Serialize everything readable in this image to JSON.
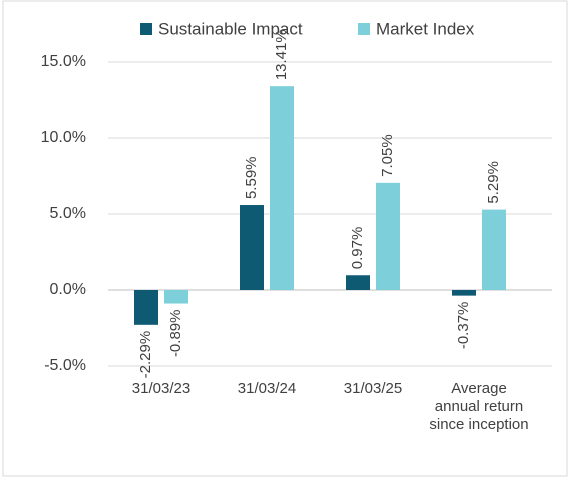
{
  "chart_data": {
    "type": "bar",
    "categories": [
      "31/03/23",
      "31/03/24",
      "31/03/25",
      "Average annual return since inception"
    ],
    "series": [
      {
        "name": "Sustainable Impact",
        "color": "#0e5a73",
        "values": [
          -2.29,
          5.59,
          0.97,
          -0.37
        ],
        "value_labels": [
          "-2.29%",
          "5.59%",
          "0.97%",
          "-0.37%"
        ]
      },
      {
        "name": "Market Index",
        "color": "#7dd0d9",
        "values": [
          -0.89,
          13.41,
          7.05,
          5.29
        ],
        "value_labels": [
          "-0.89%",
          "13.41%",
          "7.05%",
          "5.29%"
        ]
      }
    ],
    "ylim": [
      -5,
      15
    ],
    "yticks": [
      {
        "value": -5,
        "label": "-5.0%"
      },
      {
        "value": 0,
        "label": "0.0%"
      },
      {
        "value": 5,
        "label": "5.0%"
      },
      {
        "value": 10,
        "label": "10.0%"
      },
      {
        "value": 15,
        "label": "15.0%"
      }
    ],
    "grid": true,
    "legend": "top"
  }
}
